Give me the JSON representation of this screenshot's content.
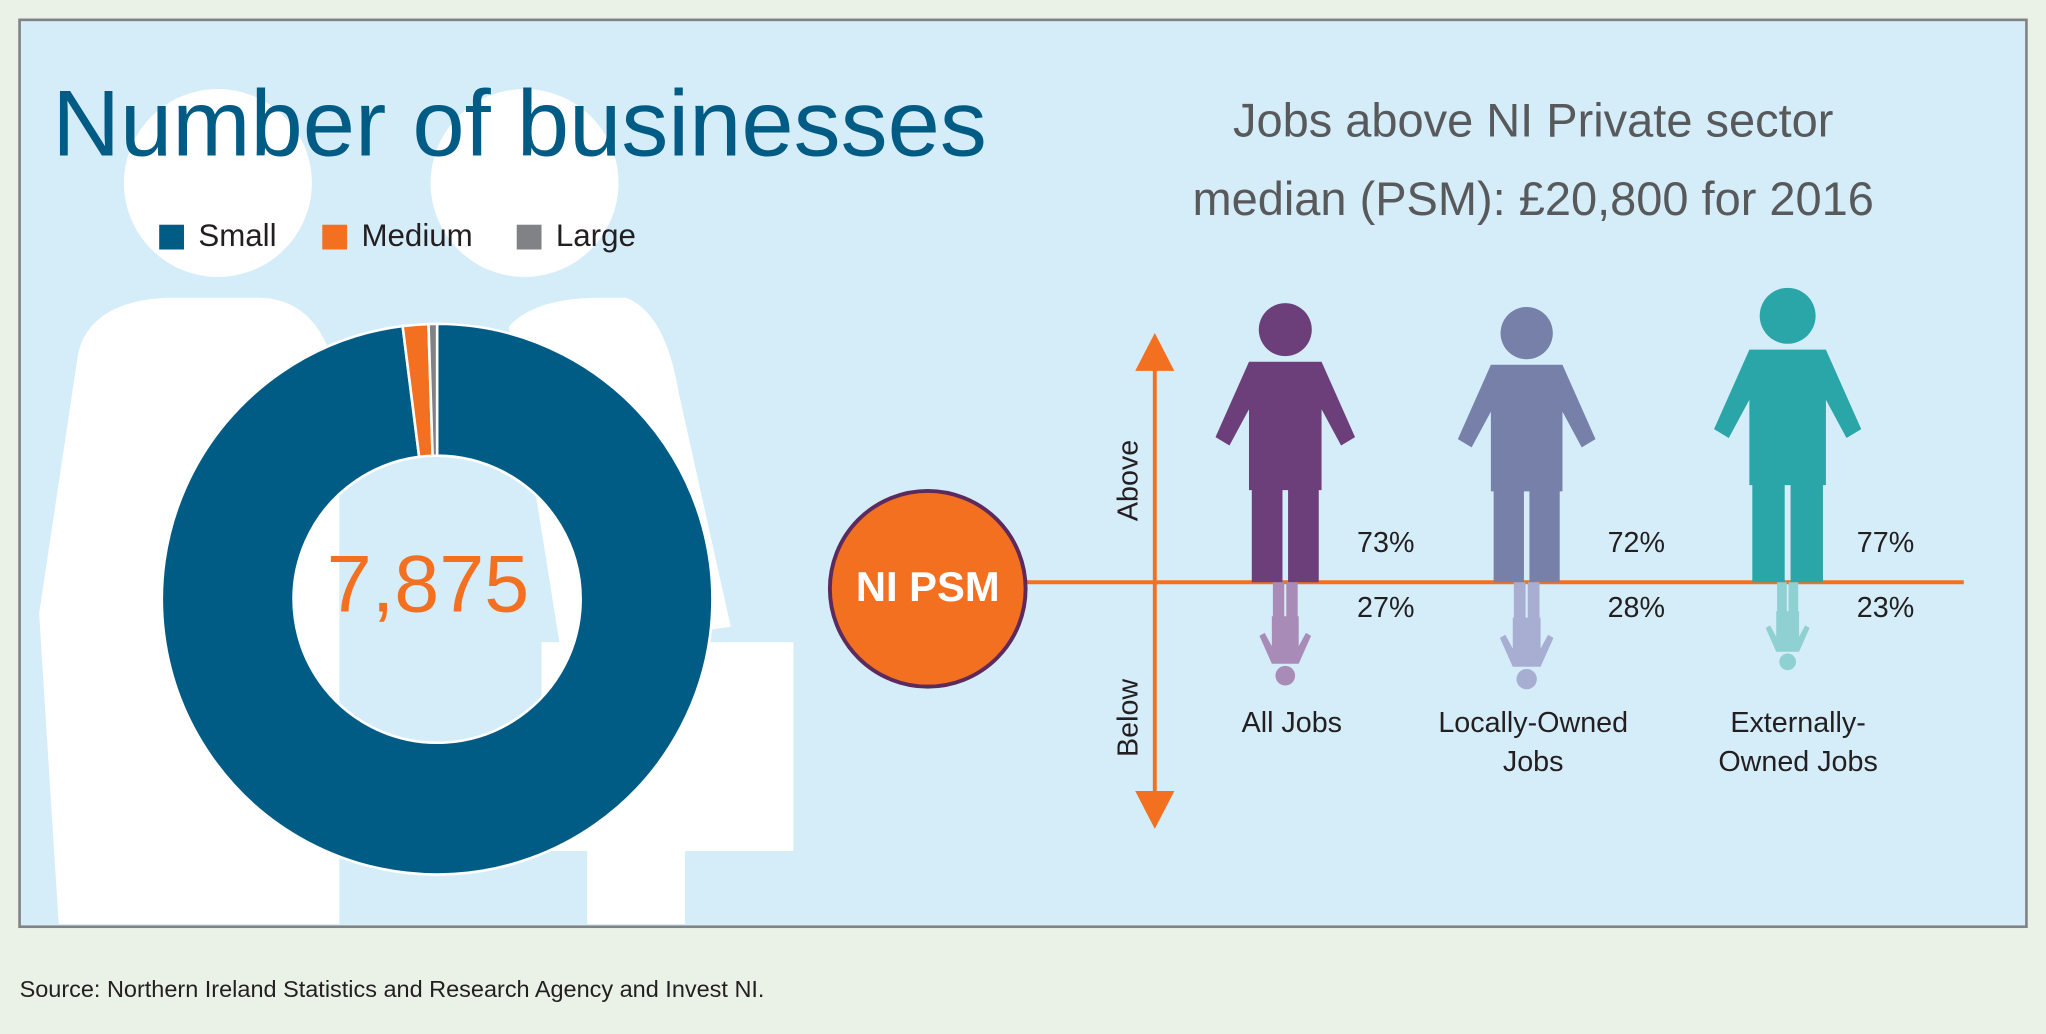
{
  "chart_data": [
    {
      "type": "donut",
      "title": "Number of businesses",
      "center_label": "7,875",
      "categories": [
        "Small",
        "Medium",
        "Large"
      ],
      "values": [
        98,
        1.5,
        0.5
      ],
      "colors": [
        "#005b85",
        "#f37021",
        "#808285"
      ]
    },
    {
      "type": "pictogram",
      "title": [
        "Jobs above NI Private sector",
        "median (PSM): £20,800 for 2016"
      ],
      "reference_label": "NI PSM",
      "axis_labels": [
        "Above",
        "Below"
      ],
      "categories": [
        [
          "All Jobs"
        ],
        [
          "Locally-Owned",
          "Jobs"
        ],
        [
          "Externally-",
          "Owned Jobs"
        ]
      ],
      "series": [
        {
          "name": "Above",
          "values": [
            73,
            72,
            77
          ],
          "value_labels": [
            "73%",
            "72%",
            "77%"
          ],
          "colors": [
            "#6d3f7a",
            "#7780a8",
            "#2aa5a8"
          ]
        },
        {
          "name": "Below",
          "values": [
            27,
            28,
            23
          ],
          "value_labels": [
            "27%",
            "28%",
            "23%"
          ],
          "colors": [
            "#a98bb7",
            "#a8aed2",
            "#8fd0d2"
          ]
        }
      ]
    }
  ],
  "source": "Source: Northern Ireland Statistics and Research Agency and Invest NI."
}
